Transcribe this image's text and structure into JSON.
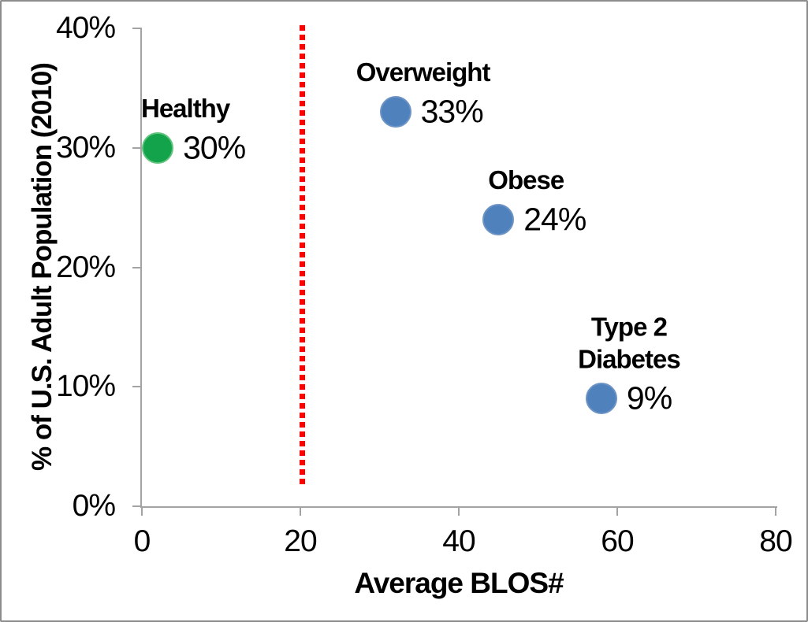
{
  "frame": {
    "background": "#FFFFFF",
    "border_color": "#8C8C8C"
  },
  "chart_data": {
    "type": "scatter",
    "title": "",
    "xlabel": "Average BLOS#",
    "ylabel": "% of U.S. Adult Population (2010)",
    "xlim": [
      0,
      80
    ],
    "ylim": [
      0,
      40
    ],
    "grid": false,
    "legend": false,
    "axis_color": "#A3A3A3",
    "text_color": "#000000",
    "x_axis": {
      "ticks": [
        {
          "value": 0,
          "label": "0"
        },
        {
          "value": 20,
          "label": "20"
        },
        {
          "value": 40,
          "label": "40"
        },
        {
          "value": 60,
          "label": "60"
        },
        {
          "value": 80,
          "label": "80"
        }
      ]
    },
    "y_axis": {
      "ticks": [
        {
          "value": 0,
          "label": "0%"
        },
        {
          "value": 10,
          "label": "10%"
        },
        {
          "value": 20,
          "label": "20%"
        },
        {
          "value": 30,
          "label": "30%"
        },
        {
          "value": 40,
          "label": "40%"
        }
      ]
    },
    "points": [
      {
        "name": "Healthy",
        "x": 2,
        "y": 30,
        "value_label": "30%",
        "color": "#12A34B",
        "border_color": "#5FC27D"
      },
      {
        "name": "Overweight",
        "x": 32,
        "y": 33,
        "value_label": "33%",
        "color": "#4F81BD",
        "border_color": "#6C93C4"
      },
      {
        "name": "Obese",
        "x": 45,
        "y": 24,
        "value_label": "24%",
        "color": "#4F81BD",
        "border_color": "#6C93C4"
      },
      {
        "name": "Type 2\nDiabetes",
        "x": 58,
        "y": 9,
        "value_label": "9%",
        "color": "#4F81BD",
        "border_color": "#6C93C4"
      }
    ],
    "reference_line": {
      "x": 20.2,
      "from_y": 2,
      "to_y": 40,
      "color": "#FF0000",
      "style": "dotted"
    }
  }
}
